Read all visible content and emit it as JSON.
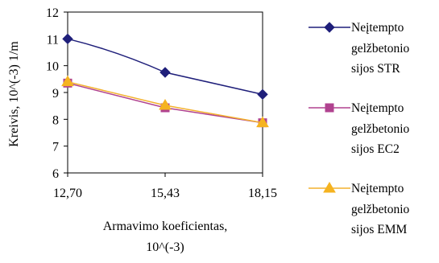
{
  "chart_data": {
    "type": "line",
    "x": [
      "12,70",
      "15,43",
      "18,15"
    ],
    "ylim": [
      6,
      12
    ],
    "yticks": [
      "6",
      "7",
      "8",
      "9",
      "10",
      "11",
      "12"
    ],
    "ylabel": "Kreivis, 10^(-3) 1/m",
    "xlabel_line1": "Armavimo koeficientas,",
    "xlabel_line2": "10^(-3)",
    "grid": false,
    "legend_position": "right",
    "series": [
      {
        "name_lines": [
          "Neįtempto",
          "gelžbetonio",
          "sijos STR"
        ],
        "values": [
          11.0,
          9.75,
          8.93
        ],
        "color": "#1f1f7a",
        "marker": "diamond",
        "marker_color": "#1f1f7a"
      },
      {
        "name_lines": [
          "Neįtempto",
          "gelžbetonio",
          "sijos EC2"
        ],
        "values": [
          9.35,
          8.43,
          7.87
        ],
        "color": "#b0428f",
        "marker": "square",
        "marker_color": "#b0428f"
      },
      {
        "name_lines": [
          "Neįtempto",
          "gelžbetonio",
          "sijos EMM"
        ],
        "values": [
          9.4,
          8.52,
          7.87
        ],
        "color": "#f3b12e",
        "marker": "triangle",
        "marker_color": "#f5b320"
      }
    ]
  }
}
